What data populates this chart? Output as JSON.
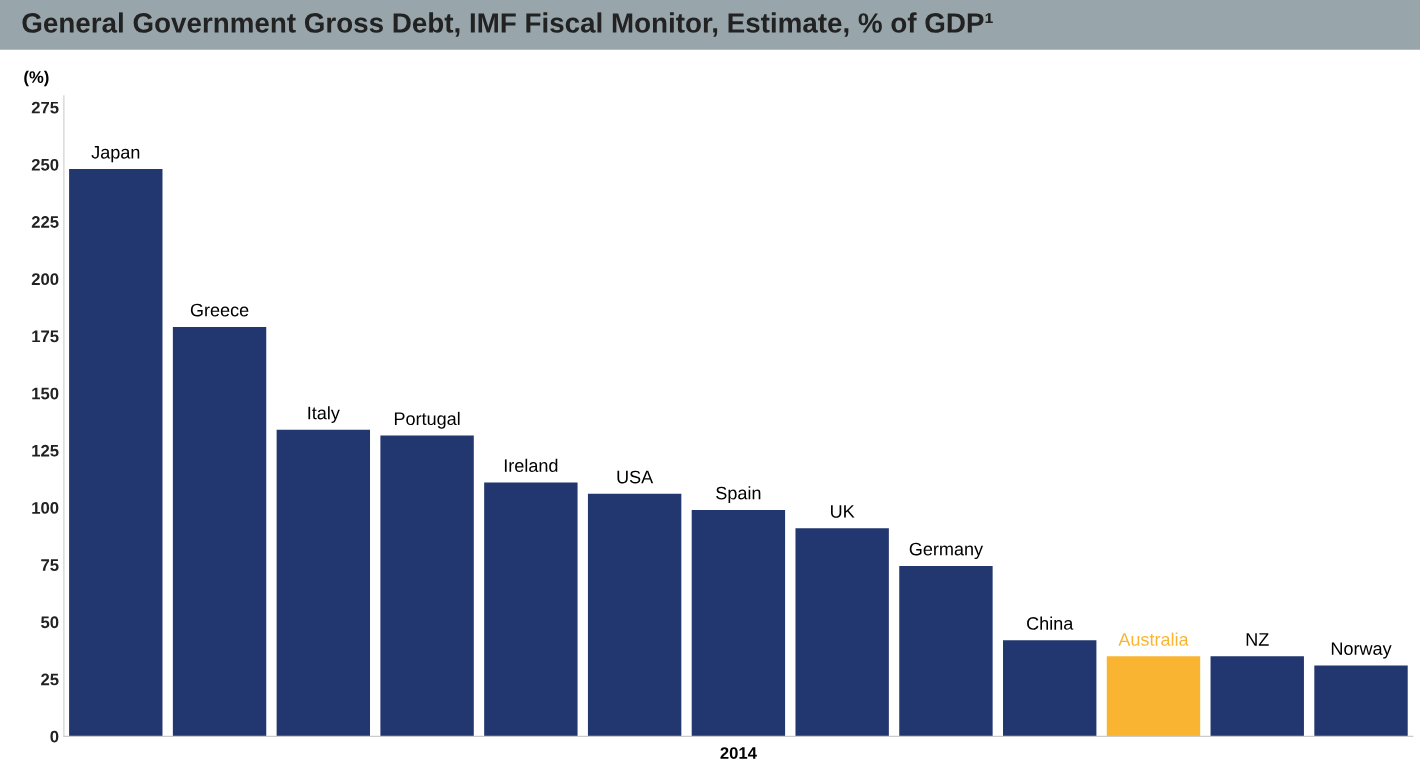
{
  "chart_data": {
    "type": "bar",
    "title": "General Government Gross Debt, IMF Fiscal Monitor, Estimate, % of GDP¹",
    "xlabel": "2014",
    "ylabel": "(%)",
    "categories": [
      "Japan",
      "Greece",
      "Italy",
      "Portugal",
      "Ireland",
      "USA",
      "Spain",
      "UK",
      "Germany",
      "China",
      "Australia",
      "NZ",
      "Norway"
    ],
    "values": [
      248,
      179,
      134,
      131.5,
      111,
      106,
      99,
      91,
      74.5,
      42,
      35,
      35,
      31
    ],
    "colors": [
      "#22366f",
      "#22366f",
      "#22366f",
      "#22366f",
      "#22366f",
      "#22366f",
      "#22366f",
      "#22366f",
      "#22366f",
      "#22366f",
      "#f9b531",
      "#22366f",
      "#22366f"
    ],
    "ylim": [
      0,
      280
    ],
    "yticks": [
      0,
      25,
      50,
      75,
      100,
      125,
      150,
      175,
      200,
      225,
      250,
      275
    ],
    "grid": false,
    "legend": false
  }
}
